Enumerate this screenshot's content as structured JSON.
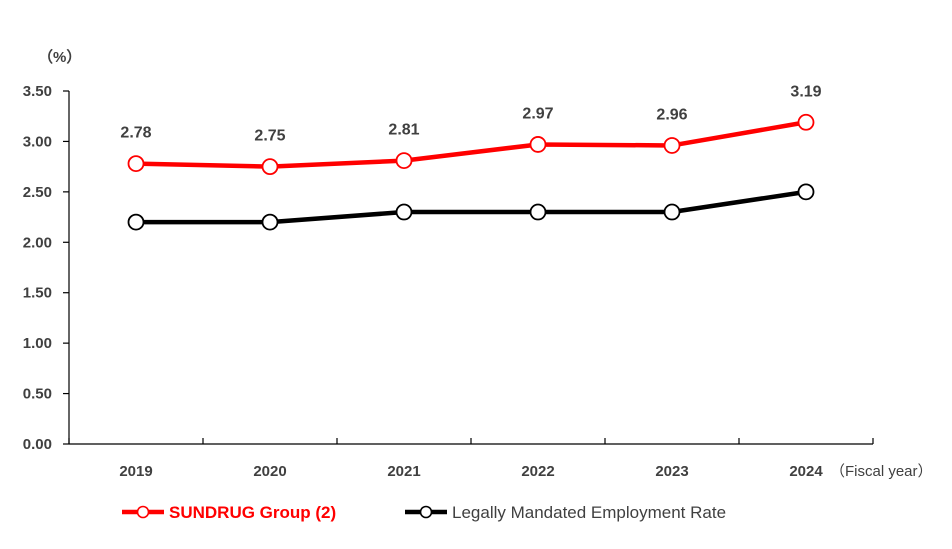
{
  "chart_data": {
    "type": "line",
    "unit_label": "（%）",
    "xlabel": "（Fiscal year）",
    "categories": [
      "2019",
      "2020",
      "2021",
      "2022",
      "2023",
      "2024"
    ],
    "ylim": [
      0,
      3.5
    ],
    "yticks": [
      "0.00",
      "0.50",
      "1.00",
      "1.50",
      "2.00",
      "2.50",
      "3.00",
      "3.50"
    ],
    "grid": false,
    "legend_position": "bottom",
    "series": [
      {
        "name": "SUNDRUG Group (2)",
        "values": [
          2.78,
          2.75,
          2.81,
          2.97,
          2.96,
          3.19
        ],
        "data_labels": [
          "2.78",
          "2.75",
          "2.81",
          "2.97",
          "2.96",
          "3.19"
        ],
        "color": "#ff0000",
        "marker": "open-circle"
      },
      {
        "name": "Legally Mandated Employment Rate",
        "values": [
          2.2,
          2.2,
          2.3,
          2.3,
          2.3,
          2.5
        ],
        "color": "#000000",
        "marker": "open-circle"
      }
    ]
  }
}
